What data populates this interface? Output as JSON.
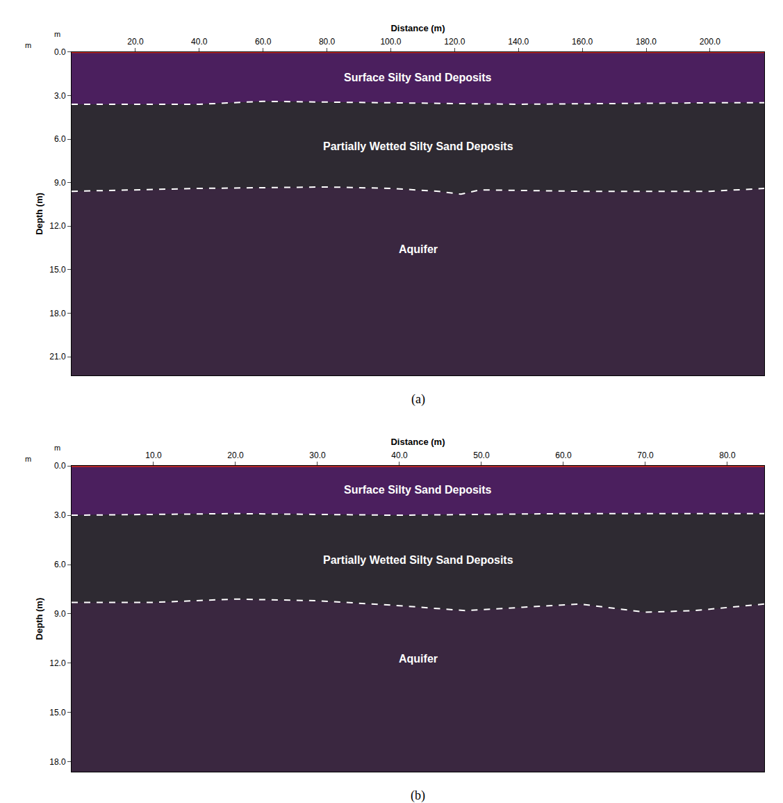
{
  "chart_data": [
    {
      "type": "area",
      "panel_label": "(a)",
      "corner_label": "m",
      "x_label": "Distance (m)",
      "y_label": "Depth (m)",
      "grid": false,
      "xlim": [
        0,
        217
      ],
      "xticks": [
        {
          "value": 20,
          "label": "20.0"
        },
        {
          "value": 40,
          "label": "40.0"
        },
        {
          "value": 60,
          "label": "60.0"
        },
        {
          "value": 80,
          "label": "80.0"
        },
        {
          "value": 100,
          "label": "100.0"
        },
        {
          "value": 120,
          "label": "120.0"
        },
        {
          "value": 140,
          "label": "140.0"
        },
        {
          "value": 160,
          "label": "160.0"
        },
        {
          "value": 180,
          "label": "180.0"
        },
        {
          "value": 200,
          "label": "200.0"
        }
      ],
      "ylim": [
        0,
        22.3
      ],
      "yticks": [
        {
          "value": 0,
          "label": "0.0"
        },
        {
          "value": 3,
          "label": "3.0"
        },
        {
          "value": 6,
          "label": "6.0"
        },
        {
          "value": 9,
          "label": "9.0"
        },
        {
          "value": 12,
          "label": "12.0"
        },
        {
          "value": 15,
          "label": "15.0"
        },
        {
          "value": 18,
          "label": "18.0"
        },
        {
          "value": 21,
          "label": "21.0"
        }
      ],
      "layers": [
        {
          "name": "Surface Silty Sand Deposits",
          "color": "#4b1f5e"
        },
        {
          "name": "Partially Wetted Silty Sand Deposits",
          "color": "#2e2a32"
        },
        {
          "name": "Aquifer",
          "color": "#3a2740"
        }
      ],
      "boundaries": [
        {
          "x": [
            0,
            40,
            60,
            100,
            140,
            200,
            217
          ],
          "values": [
            3.6,
            3.6,
            3.4,
            3.5,
            3.6,
            3.5,
            3.5
          ],
          "color": "#ffffff",
          "line_style": "dashed"
        },
        {
          "x": [
            0,
            20,
            40,
            80,
            100,
            115,
            122,
            128,
            160,
            200,
            217
          ],
          "values": [
            9.6,
            9.5,
            9.4,
            9.3,
            9.4,
            9.6,
            9.8,
            9.5,
            9.6,
            9.6,
            9.4
          ],
          "color": "#ffffff",
          "line_style": "dashed"
        }
      ]
    },
    {
      "type": "area",
      "panel_label": "(b)",
      "corner_label": "m",
      "x_label": "Distance (m)",
      "y_label": "Depth (m)",
      "grid": false,
      "xlim": [
        0,
        84.5
      ],
      "xticks": [
        {
          "value": 10,
          "label": "10.0"
        },
        {
          "value": 20,
          "label": "20.0"
        },
        {
          "value": 30,
          "label": "30.0"
        },
        {
          "value": 40,
          "label": "40.0"
        },
        {
          "value": 50,
          "label": "50.0"
        },
        {
          "value": 60,
          "label": "60.0"
        },
        {
          "value": 70,
          "label": "70.0"
        },
        {
          "value": 80,
          "label": "80.0"
        }
      ],
      "ylim": [
        0,
        18.6
      ],
      "yticks": [
        {
          "value": 0,
          "label": "0.0"
        },
        {
          "value": 3,
          "label": "3.0"
        },
        {
          "value": 6,
          "label": "6.0"
        },
        {
          "value": 9,
          "label": "9.0"
        },
        {
          "value": 12,
          "label": "12.0"
        },
        {
          "value": 15,
          "label": "15.0"
        },
        {
          "value": 18,
          "label": "18.0"
        }
      ],
      "layers": [
        {
          "name": "Surface Silty Sand Deposits",
          "color": "#4b1f5e"
        },
        {
          "name": "Partially Wetted Silty Sand Deposits",
          "color": "#2e2a32"
        },
        {
          "name": "Aquifer",
          "color": "#3a2740"
        }
      ],
      "boundaries": [
        {
          "x": [
            0,
            20,
            40,
            60,
            84.5
          ],
          "values": [
            3.0,
            2.9,
            3.0,
            2.9,
            2.9
          ],
          "color": "#ffffff",
          "line_style": "dashed"
        },
        {
          "x": [
            0,
            10,
            20,
            30,
            40,
            48,
            55,
            62,
            70,
            76,
            84.5
          ],
          "values": [
            8.3,
            8.3,
            8.1,
            8.2,
            8.5,
            8.8,
            8.6,
            8.4,
            8.9,
            8.8,
            8.4
          ],
          "color": "#ffffff",
          "line_style": "dashed"
        }
      ]
    }
  ]
}
